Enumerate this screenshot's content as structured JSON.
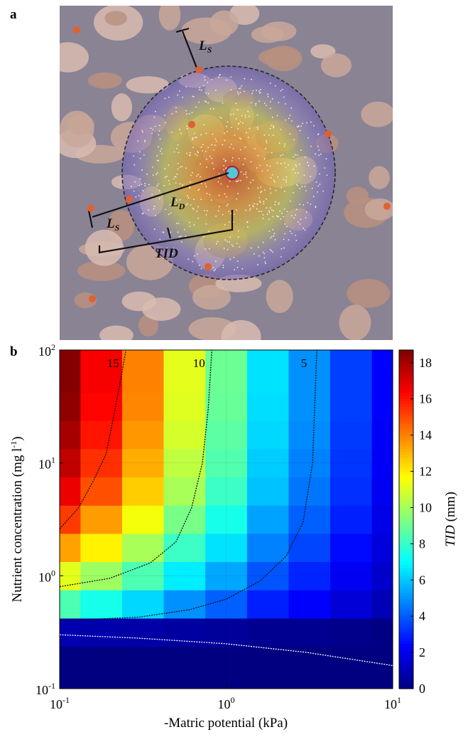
{
  "panel_a": {
    "label": "a",
    "annotations": [
      {
        "main": "L",
        "sub": "S"
      },
      {
        "main": "L",
        "sub": "D"
      },
      {
        "main": "L",
        "sub": "S"
      },
      {
        "main": "TID"
      }
    ]
  },
  "chart_data": {
    "type": "contour",
    "panel_label": "b",
    "xlabel": "-Matric potential (kPa)",
    "ylabel": {
      "text": "Nutrient concentration (mg l",
      "sup": "-1",
      "end": ")"
    },
    "colorbar_label": {
      "var": "TID",
      "unit": "(mm)"
    },
    "xscale": "log",
    "yscale": "log",
    "xlim": [
      0.1,
      10
    ],
    "ylim": [
      0.1,
      100
    ],
    "xticks": [
      {
        "value": 0.1,
        "label": "10",
        "exponent": "-1"
      },
      {
        "value": 1,
        "label": "10",
        "exponent": "0"
      },
      {
        "value": 10,
        "label": "10",
        "exponent": "1"
      }
    ],
    "yticks": [
      {
        "value": 0.1,
        "label": "10",
        "exponent": "-1"
      },
      {
        "value": 1,
        "label": "10",
        "exponent": "0"
      },
      {
        "value": 10,
        "label": "10",
        "exponent": "1"
      },
      {
        "value": 100,
        "label": "10",
        "exponent": "2"
      }
    ],
    "colormap": "jet",
    "clim": [
      0,
      18.7
    ],
    "cticks": [
      0,
      2,
      4,
      6,
      8,
      10,
      12,
      14,
      16,
      18
    ],
    "x": [
      0.1,
      0.178,
      0.316,
      0.562,
      1,
      1.78,
      3.16,
      5.62,
      10
    ],
    "y": [
      0.1,
      0.178,
      0.316,
      0.562,
      1,
      1.78,
      3.16,
      5.62,
      10,
      17.8,
      31.6,
      56.2,
      100
    ],
    "z": [
      [
        0,
        0,
        0,
        0,
        0,
        0,
        0,
        0,
        0
      ],
      [
        0,
        0,
        0,
        0,
        0,
        0,
        0,
        0,
        0
      ],
      [
        0.9,
        0.8,
        0.7,
        0.6,
        0.5,
        0.3,
        0.3,
        0.2,
        0.1
      ],
      [
        8.4,
        7.4,
        6.3,
        5.0,
        4.1,
        2.9,
        2.3,
        1.6,
        1.0
      ],
      [
        11.2,
        9.9,
        8.4,
        6.7,
        5.4,
        3.9,
        3.0,
        2.1,
        1.4
      ],
      [
        13.4,
        11.9,
        10.1,
        8.1,
        6.5,
        4.7,
        3.6,
        2.5,
        1.7
      ],
      [
        15.3,
        13.5,
        11.5,
        9.2,
        7.4,
        5.3,
        4.1,
        2.9,
        1.9
      ],
      [
        16.7,
        14.9,
        12.6,
        10.1,
        8.1,
        5.9,
        4.5,
        3.2,
        2.1
      ],
      [
        17.5,
        15.5,
        13.2,
        10.5,
        8.5,
        6.1,
        4.7,
        3.3,
        2.2
      ],
      [
        18.0,
        16.0,
        13.6,
        10.9,
        8.7,
        6.3,
        4.9,
        3.4,
        2.2
      ],
      [
        18.4,
        16.3,
        13.9,
        11.1,
        8.9,
        6.4,
        5.0,
        3.5,
        2.3
      ],
      [
        18.6,
        16.5,
        14.0,
        11.2,
        9.0,
        6.5,
        5.0,
        3.5,
        2.3
      ],
      [
        18.6,
        16.5,
        14.0,
        11.2,
        9.0,
        6.5,
        5.0,
        3.5,
        2.3
      ]
    ],
    "contours": [
      {
        "level": 15,
        "x": [
          0.1,
          0.13,
          0.16,
          0.19,
          0.21,
          0.23,
          0.25
        ],
        "y": [
          2.6,
          4,
          7,
          12,
          25,
          50,
          100
        ]
      },
      {
        "level": 10,
        "x": [
          0.1,
          0.2,
          0.35,
          0.5,
          0.62,
          0.72,
          0.78,
          0.82
        ],
        "y": [
          0.8,
          0.95,
          1.3,
          2,
          4,
          10,
          30,
          100
        ]
      },
      {
        "level": 5,
        "x": [
          0.1,
          0.3,
          0.6,
          1,
          1.6,
          2.3,
          2.9,
          3.3,
          3.5
        ],
        "y": [
          0.4,
          0.43,
          0.5,
          0.62,
          0.9,
          1.5,
          3,
          10,
          100
        ]
      },
      {
        "level": 0,
        "x": [
          0.1,
          0.3,
          1,
          3,
          10
        ],
        "y": [
          0.3,
          0.28,
          0.25,
          0.21,
          0.16
        ]
      }
    ]
  }
}
